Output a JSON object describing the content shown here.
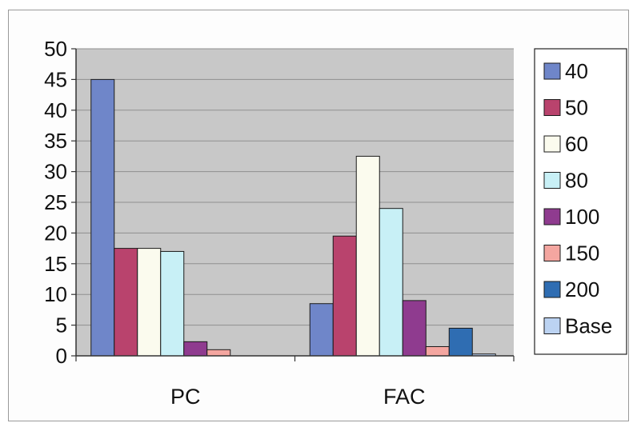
{
  "chart_data": {
    "type": "bar",
    "title": "",
    "xlabel": "",
    "ylabel": "",
    "categories": [
      "PC",
      "FAC"
    ],
    "ylim": [
      0,
      50
    ],
    "yticks": [
      0,
      5,
      10,
      15,
      20,
      25,
      30,
      35,
      40,
      45,
      50
    ],
    "grid": true,
    "plot_background": "#c8c8c8",
    "legend": "right",
    "series": [
      {
        "name": "40",
        "color": "#6f86c9",
        "values": [
          45,
          8.5
        ]
      },
      {
        "name": "50",
        "color": "#b9436d",
        "values": [
          17.5,
          19.5
        ]
      },
      {
        "name": "60",
        "color": "#fbfbee",
        "values": [
          17.5,
          32.5
        ]
      },
      {
        "name": "80",
        "color": "#c8f0f6",
        "values": [
          17,
          24
        ]
      },
      {
        "name": "100",
        "color": "#8f3b8f",
        "values": [
          2.3,
          9
        ]
      },
      {
        "name": "150",
        "color": "#f4a6a0",
        "values": [
          1,
          1.5
        ]
      },
      {
        "name": "200",
        "color": "#2f6db2",
        "values": [
          0,
          4.5
        ]
      },
      {
        "name": "Base",
        "color": "#bcd3f2",
        "values": [
          0,
          0.3
        ]
      }
    ]
  }
}
